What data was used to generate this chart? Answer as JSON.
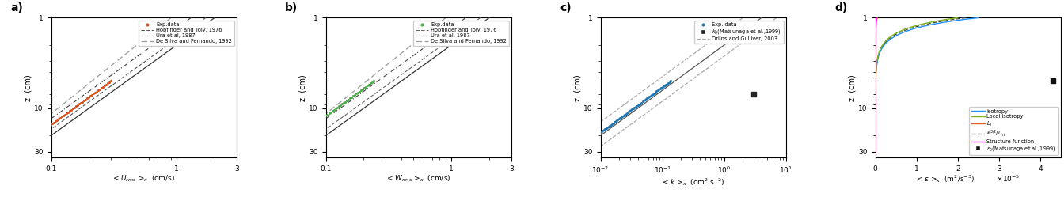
{
  "panel_a": {
    "xlabel": "< $U_{rms}$ >$_x$  (cm/s)",
    "ylabel": "z  (cm)",
    "xlim": [
      0.1,
      3
    ],
    "ylim": [
      1,
      35
    ],
    "yticks": [
      1,
      10,
      30
    ],
    "xticks": [
      0.1,
      1,
      3
    ],
    "exp_color": "#d9541e",
    "legend": [
      "Exp.data",
      "Hopfinger and Toly, 1976",
      "Ura et al, 1987",
      "De Silva and Fernando, 1992"
    ]
  },
  "panel_b": {
    "xlabel": "< $W_{rms}$ >$_x$  (cm/s)",
    "ylabel": "z  (cm)",
    "xlim": [
      0.1,
      3
    ],
    "ylim": [
      1,
      35
    ],
    "yticks": [
      1,
      10,
      30
    ],
    "xticks": [
      0.1,
      1,
      3
    ],
    "exp_color": "#4daf4a",
    "legend": [
      "Exp.data",
      "Hopfinger and Toly, 1976",
      "Ura et al, 1987",
      "De Silva and Fernando, 1992"
    ]
  },
  "panel_c": {
    "xlabel": "< $k$ >$_x$  (cm$^2$.s$^{-2}$)",
    "ylabel": "z  (cm)",
    "xlim": [
      0.01,
      10
    ],
    "ylim": [
      1,
      35
    ],
    "yticks": [
      1,
      10,
      30
    ],
    "xticks": [
      0.01,
      0.1,
      1,
      10
    ],
    "exp_color": "#1f77b4",
    "matsunaga_color": "#222222",
    "legend": [
      "Exp. data",
      "$k_0$(Matsunaga et al.,1999)",
      "Orlins and Gulliver, 2003"
    ]
  },
  "panel_d": {
    "xlabel": "< $\\epsilon$ >$_x$  (m$^2$/s$^{-3}$)          $\\times10^{-5}$",
    "ylabel": "z  (cm)",
    "xlim": [
      0,
      4.5
    ],
    "ylim": [
      1,
      35
    ],
    "yticks": [
      1,
      10,
      30
    ],
    "xticks": [
      0,
      1,
      2,
      3,
      4
    ],
    "legend": [
      "Isotropy",
      "Local isotropy",
      "$L_T$",
      "$k^{3/2}/L_{int}$",
      "Structure function",
      "$\\epsilon_0$(Matsunaga et al.,1999)"
    ],
    "line_colors": [
      "#1e90ff",
      "#7cb518",
      "#e8601c",
      "#444444",
      "#ff00ff",
      "#111111"
    ]
  }
}
